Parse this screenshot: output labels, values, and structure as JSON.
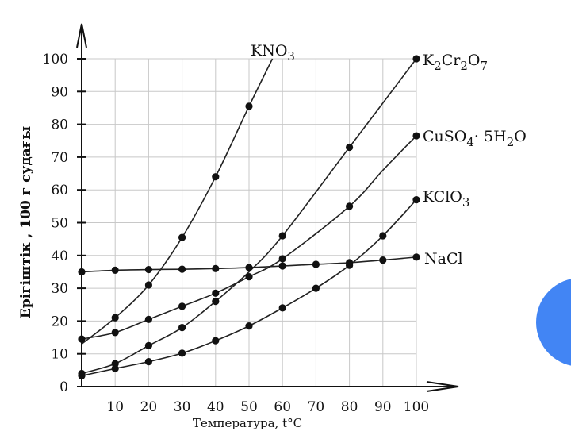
{
  "chart_data": {
    "type": "line",
    "title": "",
    "xlabel": "Температура, t°C",
    "ylabel": "Ерігіштік , 100 г судағы",
    "xlim": [
      0,
      100
    ],
    "ylim": [
      0,
      100
    ],
    "x_ticks": [
      "10",
      "20",
      "30",
      "40",
      "50",
      "60",
      "70",
      "80",
      "90",
      "100"
    ],
    "y_ticks": [
      "0",
      "10",
      "20",
      "30",
      "40",
      "50",
      "60",
      "70",
      "80",
      "90",
      "100"
    ],
    "grid": true,
    "series": [
      {
        "name": "KNO",
        "label": {
          "base": "KNO",
          "sub": "3"
        },
        "x": [
          0,
          10,
          20,
          30,
          40,
          50,
          57
        ],
        "y": [
          13,
          21,
          31,
          45.5,
          64,
          85.5,
          100
        ],
        "markers_x": [
          10,
          20,
          30,
          40,
          50
        ],
        "markers_y": [
          21,
          31,
          45.5,
          64,
          85.5
        ]
      },
      {
        "name": "K2Cr2O7",
        "label": {
          "base": "K2Cr2O7"
        },
        "x": [
          0,
          10,
          20,
          30,
          40,
          50,
          60,
          80,
          100
        ],
        "y": [
          4,
          7,
          12.5,
          18,
          26,
          35,
          46,
          73,
          100
        ],
        "markers_x": [
          0,
          10,
          20,
          30,
          40,
          60,
          80,
          100
        ],
        "markers_y": [
          4,
          7,
          12.5,
          18,
          26,
          46,
          73,
          100
        ]
      },
      {
        "name": "CuSO4· 5H2O",
        "label": {
          "base": "CuSO4· 5H2O"
        },
        "x": [
          0,
          10,
          20,
          30,
          40,
          50,
          60,
          80,
          90,
          100
        ],
        "y": [
          14.5,
          16.5,
          20.5,
          24.5,
          28.5,
          33.5,
          39,
          55,
          66,
          76.5
        ],
        "markers_x": [
          0,
          10,
          20,
          30,
          40,
          50,
          60,
          80,
          100
        ],
        "markers_y": [
          14.5,
          16.5,
          20.5,
          24.5,
          28.5,
          33.5,
          39,
          55,
          76.5
        ]
      },
      {
        "name": "KClO3",
        "label": {
          "base": "KClO",
          "sub": "3"
        },
        "x": [
          0,
          10,
          20,
          30,
          40,
          50,
          60,
          70,
          80,
          90,
          100
        ],
        "y": [
          3.3,
          5.5,
          7.6,
          10.2,
          14,
          18.5,
          24,
          30,
          37,
          46,
          57
        ],
        "markers_x": [
          0,
          10,
          20,
          30,
          40,
          50,
          60,
          70,
          80,
          90,
          100
        ],
        "markers_y": [
          3.3,
          5.5,
          7.6,
          10.2,
          14,
          18.5,
          24,
          30,
          37,
          46,
          57
        ]
      },
      {
        "name": "NaCl",
        "label": {
          "base": "NaCl"
        },
        "x": [
          0,
          10,
          20,
          30,
          40,
          50,
          60,
          70,
          80,
          90,
          100
        ],
        "y": [
          35,
          35.5,
          35.7,
          35.8,
          36,
          36.3,
          36.8,
          37.3,
          37.8,
          38.6,
          39.5
        ],
        "markers_x": [
          0,
          10,
          20,
          30,
          40,
          50,
          60,
          70,
          80,
          90,
          100
        ],
        "markers_y": [
          35,
          35.5,
          35.7,
          35.8,
          36,
          36.3,
          36.8,
          37.3,
          37.8,
          38.6,
          39.5
        ]
      }
    ]
  }
}
